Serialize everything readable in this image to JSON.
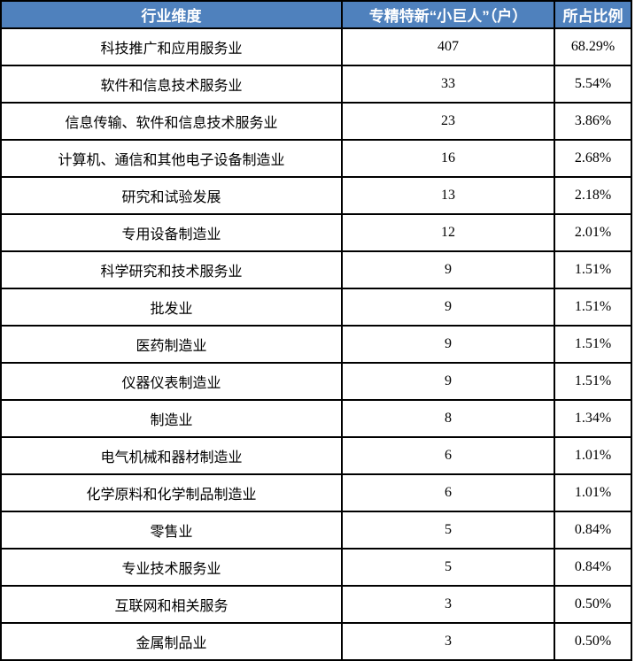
{
  "chart_data": {
    "type": "table",
    "title": "",
    "columns": [
      "行业维度",
      "专精特新“小巨人”（户）",
      "所占比例"
    ],
    "rows": [
      [
        "科技推广和应用服务业",
        "407",
        "68.29%"
      ],
      [
        "软件和信息技术服务业",
        "33",
        "5.54%"
      ],
      [
        "信息传输、软件和信息技术服务业",
        "23",
        "3.86%"
      ],
      [
        "计算机、通信和其他电子设备制造业",
        "16",
        "2.68%"
      ],
      [
        "研究和试验发展",
        "13",
        "2.18%"
      ],
      [
        "专用设备制造业",
        "12",
        "2.01%"
      ],
      [
        "科学研究和技术服务业",
        "9",
        "1.51%"
      ],
      [
        "批发业",
        "9",
        "1.51%"
      ],
      [
        "医药制造业",
        "9",
        "1.51%"
      ],
      [
        "仪器仪表制造业",
        "9",
        "1.51%"
      ],
      [
        "制造业",
        "8",
        "1.34%"
      ],
      [
        "电气机械和器材制造业",
        "6",
        "1.01%"
      ],
      [
        "化学原料和化学制品制造业",
        "6",
        "1.01%"
      ],
      [
        "零售业",
        "5",
        "0.84%"
      ],
      [
        "专业技术服务业",
        "5",
        "0.84%"
      ],
      [
        "互联网和相关服务",
        "3",
        "0.50%"
      ],
      [
        "金属制品业",
        "3",
        "0.50%"
      ]
    ]
  },
  "colors": {
    "header_bg": "#4F81BD",
    "header_text": "#FFFFFF",
    "border": "#000000",
    "cell_text": "#000000"
  }
}
